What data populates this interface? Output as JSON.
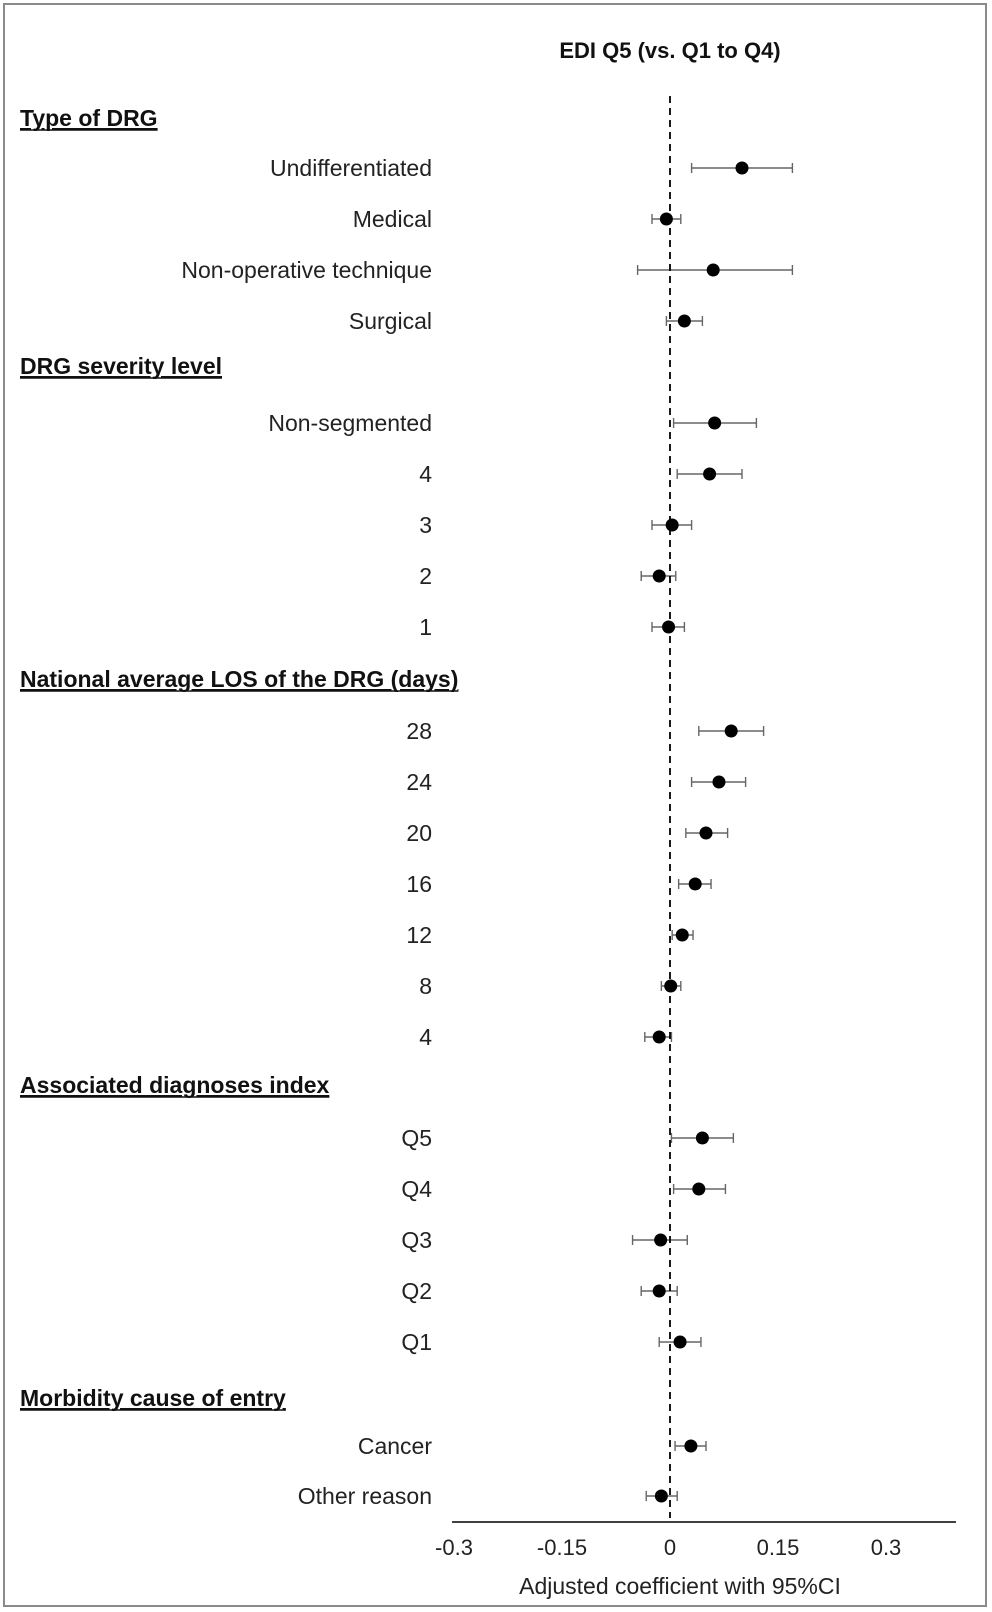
{
  "chart_data": {
    "type": "forest",
    "title": "EDI Q5 (vs. Q1 to Q4)",
    "xlabel": "Adjusted coefficient with 95%CI",
    "xlim": [
      -0.3,
      0.4
    ],
    "xticks": [
      -0.3,
      -0.15,
      0,
      0.15,
      0.3
    ],
    "xtick_labels": [
      "-0.3",
      "-0.15",
      "0",
      "0.15",
      "0.3"
    ],
    "reference_line": 0,
    "groups": [
      {
        "name": "Type of DRG",
        "rows": [
          {
            "label": "Undifferentiated",
            "estimate": 0.1,
            "lower": 0.03,
            "upper": 0.17
          },
          {
            "label": "Medical",
            "estimate": -0.005,
            "lower": -0.025,
            "upper": 0.015
          },
          {
            "label": "Non-operative technique",
            "estimate": 0.06,
            "lower": -0.045,
            "upper": 0.17
          },
          {
            "label": "Surgical",
            "estimate": 0.02,
            "lower": -0.005,
            "upper": 0.045
          }
        ]
      },
      {
        "name": "DRG severity level",
        "rows": [
          {
            "label": "Non-segmented",
            "estimate": 0.062,
            "lower": 0.005,
            "upper": 0.12
          },
          {
            "label": "4",
            "estimate": 0.055,
            "lower": 0.01,
            "upper": 0.1
          },
          {
            "label": "3",
            "estimate": 0.003,
            "lower": -0.025,
            "upper": 0.03
          },
          {
            "label": "2",
            "estimate": -0.015,
            "lower": -0.04,
            "upper": 0.008
          },
          {
            "label": "1",
            "estimate": -0.002,
            "lower": -0.025,
            "upper": 0.02
          }
        ]
      },
      {
        "name": "National average LOS of the DRG (days)",
        "rows": [
          {
            "label": "28",
            "estimate": 0.085,
            "lower": 0.04,
            "upper": 0.13
          },
          {
            "label": "24",
            "estimate": 0.068,
            "lower": 0.03,
            "upper": 0.105
          },
          {
            "label": "20",
            "estimate": 0.05,
            "lower": 0.022,
            "upper": 0.08
          },
          {
            "label": "16",
            "estimate": 0.035,
            "lower": 0.012,
            "upper": 0.057
          },
          {
            "label": "12",
            "estimate": 0.017,
            "lower": 0.003,
            "upper": 0.032
          },
          {
            "label": "8",
            "estimate": 0.001,
            "lower": -0.012,
            "upper": 0.015
          },
          {
            "label": "4",
            "estimate": -0.015,
            "lower": -0.035,
            "upper": 0.002
          }
        ]
      },
      {
        "name": "Associated diagnoses index",
        "rows": [
          {
            "label": "Q5",
            "estimate": 0.045,
            "lower": 0.002,
            "upper": 0.088
          },
          {
            "label": "Q4",
            "estimate": 0.04,
            "lower": 0.005,
            "upper": 0.077
          },
          {
            "label": "Q3",
            "estimate": -0.013,
            "lower": -0.052,
            "upper": 0.024
          },
          {
            "label": "Q2",
            "estimate": -0.015,
            "lower": -0.04,
            "upper": 0.01
          },
          {
            "label": "Q1",
            "estimate": 0.014,
            "lower": -0.015,
            "upper": 0.043
          }
        ]
      },
      {
        "name": "Morbidity cause of entry",
        "rows": [
          {
            "label": "Cancer",
            "estimate": 0.029,
            "lower": 0.007,
            "upper": 0.05
          },
          {
            "label": "Other reason",
            "estimate": -0.012,
            "lower": -0.033,
            "upper": 0.01
          }
        ]
      }
    ]
  }
}
